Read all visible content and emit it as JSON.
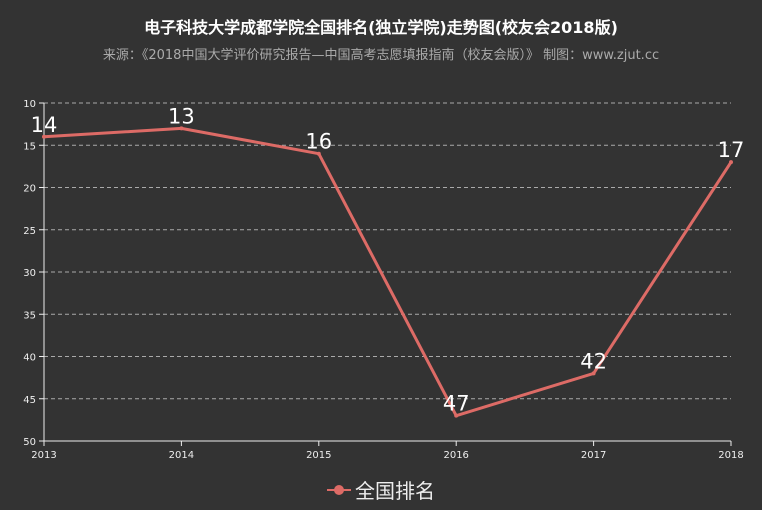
{
  "chart_data": {
    "type": "line",
    "title": "电子科技大学成都学院全国排名(独立学院)走势图(校友会2018版)",
    "subtitle": "来源：《2018中国大学评价研究报告—中国高考志愿填报指南（校友会版）》 制图：www.zjut.cc",
    "categories": [
      "2013",
      "2014",
      "2015",
      "2016",
      "2017",
      "2018"
    ],
    "series": [
      {
        "name": "全国排名",
        "values": [
          14,
          13,
          16,
          47,
          42,
          17
        ],
        "color": "#dd6b66"
      }
    ],
    "y_inverse": true,
    "ylim": [
      10,
      50
    ],
    "y_ticks": [
      10,
      15,
      20,
      25,
      30,
      35,
      40,
      45,
      50
    ],
    "grid": true,
    "legend_position": "bottom"
  }
}
